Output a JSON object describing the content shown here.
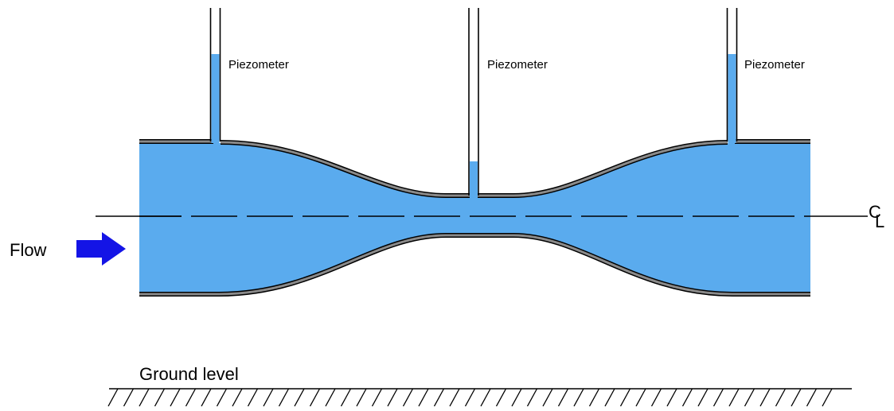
{
  "labels": {
    "piezometer_left": "Piezometer",
    "piezometer_mid": "Piezometer",
    "piezometer_right": "Piezometer",
    "flow": "Flow",
    "centerline_c": "C",
    "centerline_l": "L",
    "ground": "Ground level"
  },
  "colors": {
    "water": "#5aabee",
    "wall": "#8a8a8a",
    "arrow": "#1414e6",
    "line": "#000000"
  }
}
